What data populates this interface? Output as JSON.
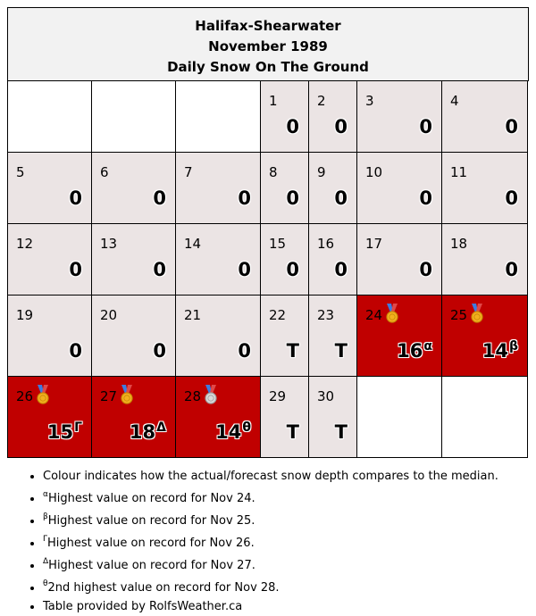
{
  "header": {
    "station": "Halifax-Shearwater",
    "period": "November 1989",
    "subtitle": "Daily Snow On The Ground"
  },
  "colors": {
    "normal_cell": "#ebe4e4",
    "record_cell": "#c00000",
    "empty_cell": "#ffffff",
    "header_bg": "#f2f2f2"
  },
  "calendar": {
    "weeks": [
      [
        {
          "day": "",
          "value": ""
        },
        {
          "day": "",
          "value": ""
        },
        {
          "day": "",
          "value": ""
        },
        {
          "day": "1",
          "value": "0",
          "sup": "",
          "status": "normal"
        },
        {
          "day": "2",
          "value": "0",
          "sup": "",
          "status": "normal"
        },
        {
          "day": "3",
          "value": "0",
          "sup": "",
          "status": "normal"
        },
        {
          "day": "4",
          "value": "0",
          "sup": "",
          "status": "normal"
        }
      ],
      [
        {
          "day": "5",
          "value": "0",
          "sup": "",
          "status": "normal"
        },
        {
          "day": "6",
          "value": "0",
          "sup": "",
          "status": "normal"
        },
        {
          "day": "7",
          "value": "0",
          "sup": "",
          "status": "normal"
        },
        {
          "day": "8",
          "value": "0",
          "sup": "",
          "status": "normal"
        },
        {
          "day": "9",
          "value": "0",
          "sup": "",
          "status": "normal"
        },
        {
          "day": "10",
          "value": "0",
          "sup": "",
          "status": "normal"
        },
        {
          "day": "11",
          "value": "0",
          "sup": "",
          "status": "normal"
        }
      ],
      [
        {
          "day": "12",
          "value": "0",
          "sup": "",
          "status": "normal"
        },
        {
          "day": "13",
          "value": "0",
          "sup": "",
          "status": "normal"
        },
        {
          "day": "14",
          "value": "0",
          "sup": "",
          "status": "normal"
        },
        {
          "day": "15",
          "value": "0",
          "sup": "",
          "status": "normal"
        },
        {
          "day": "16",
          "value": "0",
          "sup": "",
          "status": "normal"
        },
        {
          "day": "17",
          "value": "0",
          "sup": "",
          "status": "normal"
        },
        {
          "day": "18",
          "value": "0",
          "sup": "",
          "status": "normal"
        }
      ],
      [
        {
          "day": "19",
          "value": "0",
          "sup": "",
          "status": "normal"
        },
        {
          "day": "20",
          "value": "0",
          "sup": "",
          "status": "normal"
        },
        {
          "day": "21",
          "value": "0",
          "sup": "",
          "status": "normal"
        },
        {
          "day": "22",
          "value": "T",
          "sup": "",
          "status": "normal"
        },
        {
          "day": "23",
          "value": "T",
          "sup": "",
          "status": "normal"
        },
        {
          "day": "24",
          "value": "16",
          "sup": "α",
          "status": "record",
          "medal": "gold-medal-icon"
        },
        {
          "day": "25",
          "value": "14",
          "sup": "β",
          "status": "record",
          "medal": "gold-medal-icon"
        }
      ],
      [
        {
          "day": "26",
          "value": "15",
          "sup": "Γ",
          "status": "record",
          "medal": "gold-medal-icon"
        },
        {
          "day": "27",
          "value": "18",
          "sup": "Δ",
          "status": "record",
          "medal": "gold-medal-icon"
        },
        {
          "day": "28",
          "value": "14",
          "sup": "θ",
          "status": "record",
          "medal": "silver-medal-icon"
        },
        {
          "day": "29",
          "value": "T",
          "sup": "",
          "status": "normal"
        },
        {
          "day": "30",
          "value": "T",
          "sup": "",
          "status": "normal"
        },
        {
          "day": "",
          "value": ""
        },
        {
          "day": "",
          "value": ""
        }
      ]
    ]
  },
  "notes": [
    {
      "sup": "",
      "text": "Colour indicates how the actual/forecast snow depth compares to the median."
    },
    {
      "sup": "α",
      "text": "Highest value on record for Nov 24."
    },
    {
      "sup": "β",
      "text": "Highest value on record for Nov 25."
    },
    {
      "sup": "Γ",
      "text": "Highest value on record for Nov 26."
    },
    {
      "sup": "Δ",
      "text": "Highest value on record for Nov 27."
    },
    {
      "sup": "θ",
      "text": "2nd highest value on record for Nov 28."
    },
    {
      "sup": "",
      "text": "Table provided by RolfsWeather.ca"
    }
  ]
}
